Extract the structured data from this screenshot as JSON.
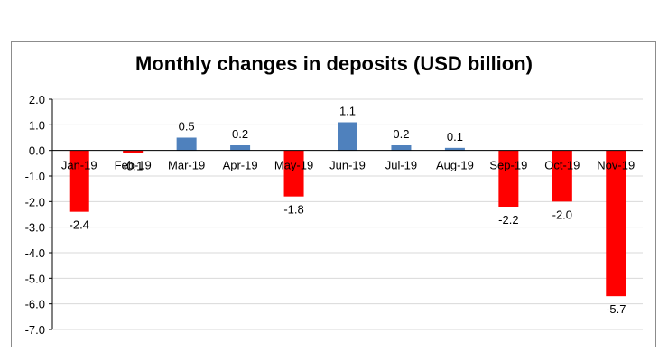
{
  "chart_data": {
    "type": "bar",
    "title": "Monthly changes in deposits (USD billion)",
    "xlabel": "",
    "ylabel": "",
    "categories": [
      "Jan-19",
      "Feb-19",
      "Mar-19",
      "Apr-19",
      "May-19",
      "Jun-19",
      "Jul-19",
      "Aug-19",
      "Sep-19",
      "Oct-19",
      "Nov-19"
    ],
    "values": [
      -2.4,
      -0.1,
      0.5,
      0.2,
      -1.8,
      1.1,
      0.2,
      0.1,
      -2.2,
      -2.0,
      -5.7
    ],
    "data_labels": [
      "-2.4",
      "-0.1",
      "0.5",
      "0.2",
      "-1.8",
      "1.1",
      "0.2",
      "0.1",
      "-2.2",
      "-2.0",
      "-5.7"
    ],
    "ylim": [
      -7.0,
      2.0
    ],
    "yticks": [
      "2.0",
      "1.0",
      "0.0",
      "-1.0",
      "-2.0",
      "-3.0",
      "-4.0",
      "-5.0",
      "-6.0",
      "-7.0"
    ],
    "ytick_values": [
      2,
      1,
      0,
      -1,
      -2,
      -3,
      -4,
      -5,
      -6,
      -7
    ],
    "grid": true,
    "colors": {
      "positive": "#4f81bd",
      "negative": "#ff0000",
      "grid": "#d9d9d9",
      "axis": "#000000"
    }
  }
}
